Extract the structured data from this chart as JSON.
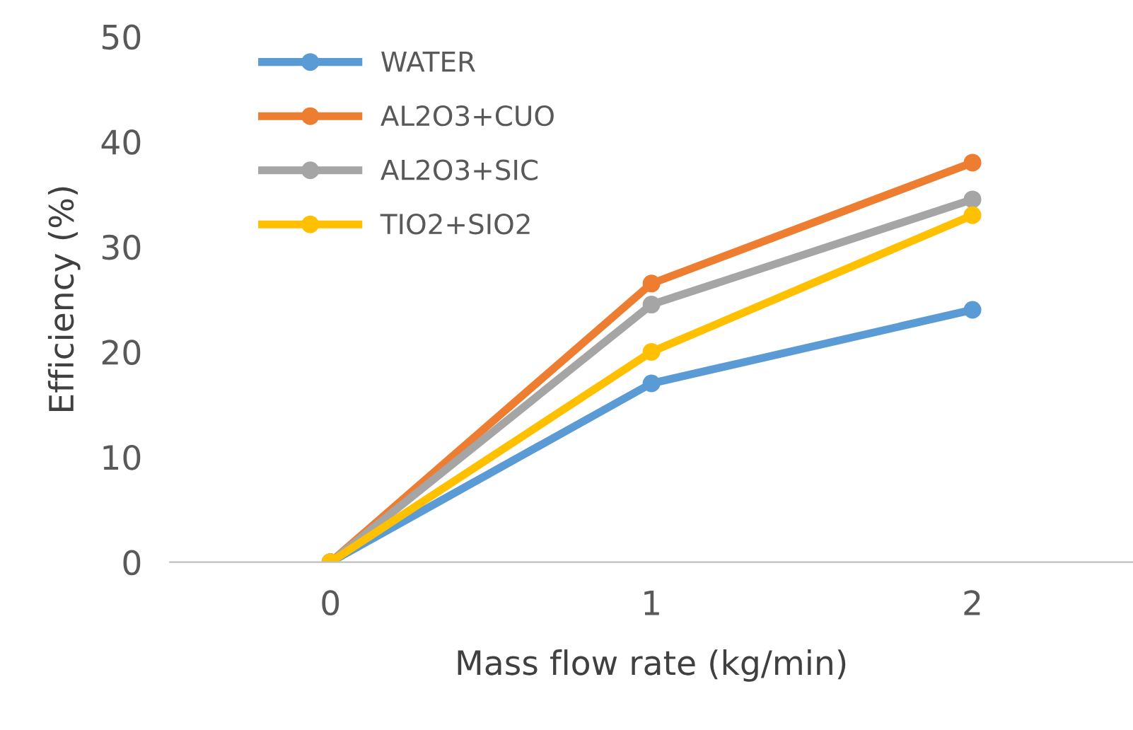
{
  "chart_data": {
    "type": "line",
    "xlabel": "Mass flow rate (kg/min)",
    "ylabel": "Efficiency (%)",
    "categories": [
      "0",
      "1",
      "2"
    ],
    "series": [
      {
        "name": "WATER",
        "color": "#5b9bd5",
        "values": [
          0,
          17,
          24
        ]
      },
      {
        "name": "AL2O3+CUO",
        "color": "#ed7d31",
        "values": [
          0,
          26.5,
          38
        ]
      },
      {
        "name": "AL2O3+SIC",
        "color": "#a5a5a5",
        "values": [
          0,
          24.5,
          34.5
        ]
      },
      {
        "name": "TIO2+SIO2",
        "color": "#ffc000",
        "values": [
          0,
          20,
          33
        ]
      }
    ],
    "ylim": [
      0,
      50
    ],
    "yticks": [
      0,
      10,
      20,
      30,
      40,
      50
    ],
    "grid": false,
    "legend": "top left",
    "marker": "circle",
    "line_style": "solid"
  }
}
